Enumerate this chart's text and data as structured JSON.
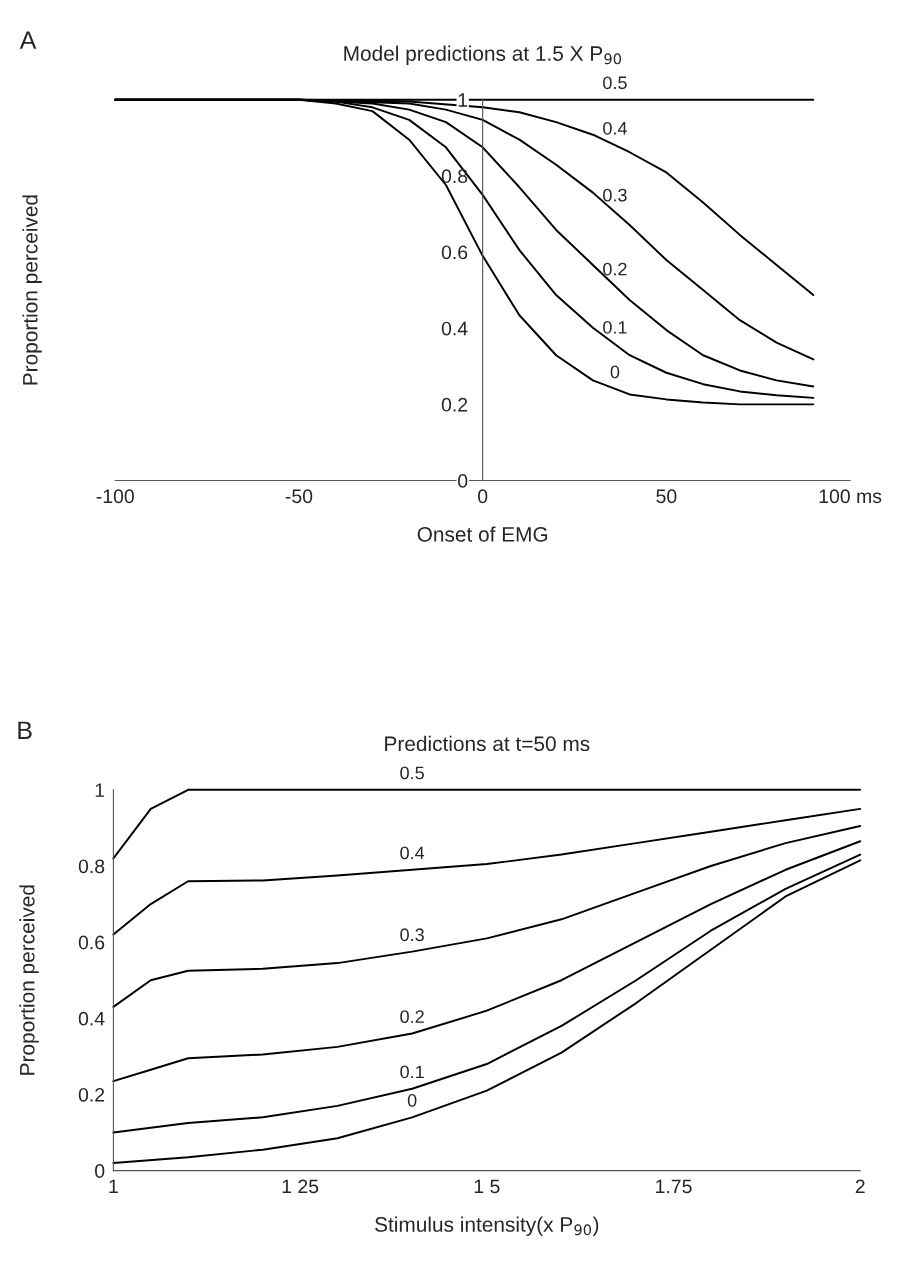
{
  "chart_data": [
    {
      "type": "line",
      "title": "Model predictions at 1.5 X P$_{90}$",
      "xlabel": "Onset of EMG",
      "ylabel": "Proportion perceived",
      "annotations": [
        "A"
      ],
      "xlim": [
        -100,
        100
      ],
      "xticks": [
        -100,
        -50,
        0,
        50,
        {
          "value": 100,
          "label": "100 ms"
        }
      ],
      "ylim": [
        0,
        1
      ],
      "yticks": [
        0,
        0.2,
        0.4,
        0.6,
        0.8,
        1
      ],
      "grid": false,
      "legend": false,
      "marker": "none",
      "line_style": "solid",
      "series": [
        {
          "name": "0",
          "color": "#000000",
          "x": [
            -100,
            -50,
            -40,
            -30,
            -20,
            -10,
            0,
            10,
            20,
            30,
            40,
            50,
            60,
            70,
            80,
            90
          ],
          "values": [
            1,
            1,
            0.99,
            0.97,
            0.895,
            0.776,
            0.59,
            0.434,
            0.329,
            0.263,
            0.226,
            0.213,
            0.205,
            0.2,
            0.2,
            0.2
          ]
        },
        {
          "name": "0.1",
          "color": "#000000",
          "x": [
            -100,
            -50,
            -40,
            -30,
            -20,
            -10,
            0,
            10,
            20,
            30,
            40,
            50,
            60,
            70,
            80,
            90
          ],
          "values": [
            1,
            1,
            0.995,
            0.98,
            0.947,
            0.875,
            0.75,
            0.605,
            0.487,
            0.401,
            0.329,
            0.283,
            0.253,
            0.234,
            0.224,
            0.217
          ]
        },
        {
          "name": "0.2",
          "color": "#000000",
          "x": [
            -100,
            -50,
            -30,
            -20,
            -10,
            0,
            10,
            20,
            30,
            40,
            50,
            60,
            70,
            80,
            90
          ],
          "values": [
            1,
            1,
            0.99,
            0.974,
            0.941,
            0.875,
            0.77,
            0.658,
            0.566,
            0.474,
            0.395,
            0.329,
            0.289,
            0.263,
            0.247
          ]
        },
        {
          "name": "0.3",
          "color": "#000000",
          "x": [
            -100,
            -50,
            -20,
            -10,
            0,
            10,
            20,
            30,
            40,
            50,
            60,
            70,
            80,
            90
          ],
          "values": [
            1,
            1,
            0.99,
            0.974,
            0.947,
            0.895,
            0.829,
            0.756,
            0.671,
            0.579,
            0.5,
            0.421,
            0.362,
            0.318
          ]
        },
        {
          "name": "0.4",
          "color": "#000000",
          "x": [
            -100,
            -50,
            -20,
            0,
            10,
            20,
            30,
            40,
            50,
            60,
            70,
            80,
            90
          ],
          "values": [
            1,
            1,
            0.995,
            0.98,
            0.967,
            0.941,
            0.908,
            0.862,
            0.809,
            0.73,
            0.645,
            0.566,
            0.487
          ]
        },
        {
          "name": "0.5",
          "color": "#000000",
          "x": [
            -100,
            90
          ],
          "values": [
            1,
            1
          ]
        }
      ]
    },
    {
      "type": "line",
      "title": "Predictions at t=50 ms",
      "xlabel": "Stimulus intensity(x P$_{90}$)",
      "ylabel": "Proportion perceived",
      "annotations": [
        "B"
      ],
      "xlim": [
        1,
        2
      ],
      "xticks": [
        1,
        {
          "value": 1.25,
          "label": "1 25"
        },
        {
          "value": 1.5,
          "label": "1 5"
        },
        1.75,
        2
      ],
      "ylim": [
        0,
        1
      ],
      "yticks": [
        0,
        0.2,
        0.4,
        0.6,
        0.8,
        1
      ],
      "grid": false,
      "legend": false,
      "marker": "none",
      "line_style": "solid",
      "series": [
        {
          "name": "0",
          "color": "#000000",
          "x": [
            1,
            1.1,
            1.2,
            1.3,
            1.4,
            1.5,
            1.6,
            1.7,
            1.8,
            1.9,
            2
          ],
          "values": [
            0.02,
            0.035,
            0.055,
            0.085,
            0.14,
            0.21,
            0.31,
            0.44,
            0.58,
            0.72,
            0.815
          ]
        },
        {
          "name": "0.1",
          "color": "#000000",
          "x": [
            1,
            1.1,
            1.2,
            1.3,
            1.4,
            1.5,
            1.6,
            1.7,
            1.8,
            1.9,
            2
          ],
          "values": [
            0.1,
            0.125,
            0.14,
            0.17,
            0.215,
            0.28,
            0.38,
            0.5,
            0.63,
            0.74,
            0.83
          ]
        },
        {
          "name": "0.2",
          "color": "#000000",
          "x": [
            1,
            1.05,
            1.1,
            1.2,
            1.3,
            1.4,
            1.5,
            1.6,
            1.7,
            1.8,
            1.9,
            2
          ],
          "values": [
            0.235,
            0.265,
            0.295,
            0.305,
            0.325,
            0.36,
            0.42,
            0.5,
            0.6,
            0.7,
            0.79,
            0.865
          ]
        },
        {
          "name": "0.3",
          "color": "#000000",
          "x": [
            1,
            1.05,
            1.1,
            1.2,
            1.3,
            1.4,
            1.5,
            1.6,
            1.7,
            1.8,
            1.9,
            2
          ],
          "values": [
            0.43,
            0.5,
            0.525,
            0.53,
            0.545,
            0.575,
            0.61,
            0.66,
            0.73,
            0.8,
            0.86,
            0.905
          ]
        },
        {
          "name": "0.4",
          "color": "#000000",
          "x": [
            1,
            1.05,
            1.1,
            1.2,
            1.3,
            1.4,
            1.5,
            1.6,
            1.7,
            1.8,
            1.9,
            2
          ],
          "values": [
            0.62,
            0.7,
            0.76,
            0.762,
            0.775,
            0.79,
            0.805,
            0.83,
            0.86,
            0.89,
            0.92,
            0.95
          ]
        },
        {
          "name": "0.5",
          "color": "#000000",
          "x": [
            1,
            1.05,
            1.1,
            2
          ],
          "values": [
            0.82,
            0.95,
            1,
            1
          ]
        }
      ]
    }
  ]
}
